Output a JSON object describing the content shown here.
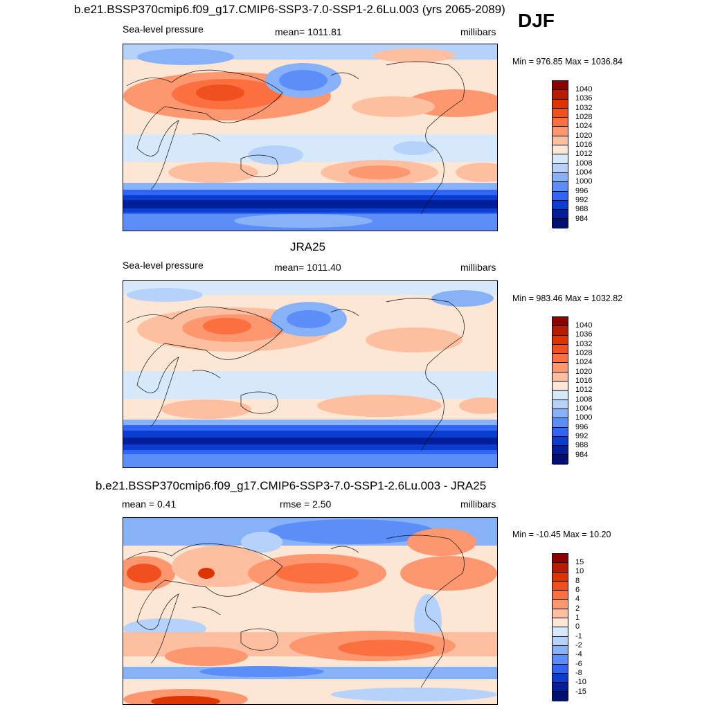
{
  "header": {
    "title": "b.e21.BSSP370cmip6.f09_g17.CMIP6-SSP3-7.0-SSP1-2.6Lu.003 (yrs 2065-2089)",
    "season": "DJF"
  },
  "panels": [
    {
      "title": "",
      "left": "Sea-level pressure",
      "center": "mean= 1011.81",
      "right": "millibars",
      "minmax": "Min = 976.85 Max = 1036.84",
      "colorbar_labels": [
        "1040",
        "1036",
        "1032",
        "1028",
        "1024",
        "1020",
        "1016",
        "1012",
        "1008",
        "1004",
        "1000",
        "996",
        "992",
        "988",
        "984"
      ],
      "colorbar_colors": [
        "#8b0000",
        "#b81c00",
        "#de3500",
        "#f05020",
        "#fc7040",
        "#fd9770",
        "#fdbfa0",
        "#fde6d3",
        "#d6e8fb",
        "#b5d2fb",
        "#88b2f8",
        "#5b8ef8",
        "#2f66f4",
        "#0b3ed0",
        "#001f99",
        "#000f70"
      ]
    },
    {
      "title": "JRA25",
      "left": "Sea-level pressure",
      "center": "mean= 1011.40",
      "right": "millibars",
      "minmax": "Min = 983.46 Max = 1032.82",
      "colorbar_labels": [
        "1040",
        "1036",
        "1032",
        "1028",
        "1024",
        "1020",
        "1016",
        "1012",
        "1008",
        "1004",
        "1000",
        "996",
        "992",
        "988",
        "984"
      ],
      "colorbar_colors": [
        "#8b0000",
        "#b81c00",
        "#de3500",
        "#f05020",
        "#fc7040",
        "#fd9770",
        "#fdbfa0",
        "#fde6d3",
        "#d6e8fb",
        "#b5d2fb",
        "#88b2f8",
        "#5b8ef8",
        "#2f66f4",
        "#0b3ed0",
        "#001f99",
        "#000f70"
      ]
    },
    {
      "title": "b.e21.BSSP370cmip6.f09_g17.CMIP6-SSP3-7.0-SSP1-2.6Lu.003 - JRA25",
      "left": "mean =   0.41",
      "center": "rmse =   2.50",
      "right": "millibars",
      "minmax": "Min = -10.45 Max =  10.20",
      "colorbar_labels": [
        "15",
        "10",
        "8",
        "6",
        "4",
        "2",
        "1",
        "0",
        "-1",
        "-2",
        "-4",
        "-6",
        "-8",
        "-10",
        "-15"
      ],
      "colorbar_colors": [
        "#8b0000",
        "#b81c00",
        "#de3500",
        "#f05020",
        "#fc7040",
        "#fd9770",
        "#fdbfa0",
        "#fde6d3",
        "#d6e8fb",
        "#b5d2fb",
        "#88b2f8",
        "#5b8ef8",
        "#2f66f4",
        "#0b3ed0",
        "#001f99",
        "#000f70"
      ]
    }
  ]
}
